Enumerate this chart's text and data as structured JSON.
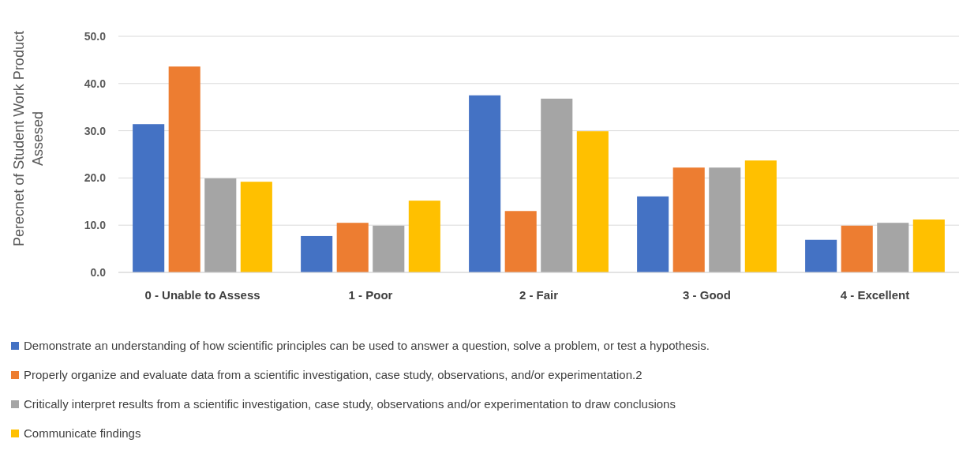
{
  "chart_data": {
    "type": "bar",
    "ylabel": "Perecnet of Student Work Product Assesed",
    "categories": [
      "0 - Unable to Assess",
      "1 - Poor",
      "2 - Fair",
      "3 - Good",
      "4 - Excellent"
    ],
    "series": [
      {
        "name": "Demonstrate an understanding of how scientific principles can be used to answer a question, solve a problem, or test a hypothesis.",
        "color": "#4472c4",
        "values": [
          31.4,
          7.7,
          37.5,
          16.1,
          6.9
        ]
      },
      {
        "name": "Properly organize and evaluate data from a scientific investigation, case study, observations, and/or experimentation.2",
        "color": "#ed7d31",
        "values": [
          43.6,
          10.5,
          13.0,
          22.2,
          9.9
        ]
      },
      {
        "name": "Critically interpret results from a scientific investigation, case study, observations and/or experimentation to draw conclusions",
        "color": "#a5a5a5",
        "values": [
          19.9,
          9.9,
          36.8,
          22.2,
          10.5
        ]
      },
      {
        "name": "Communicate findings",
        "color": "#ffc000",
        "values": [
          19.2,
          15.2,
          29.9,
          23.7,
          11.2
        ]
      }
    ],
    "ylim": [
      0,
      50
    ],
    "yticks": [
      {
        "value": 0,
        "label": "0.0"
      },
      {
        "value": 10,
        "label": "10.0"
      },
      {
        "value": 20,
        "label": "20.0"
      },
      {
        "value": 30,
        "label": "30.0"
      },
      {
        "value": 40,
        "label": "40.0"
      },
      {
        "value": 50,
        "label": "50.0"
      }
    ],
    "grid": "y",
    "legend": "bottom"
  }
}
